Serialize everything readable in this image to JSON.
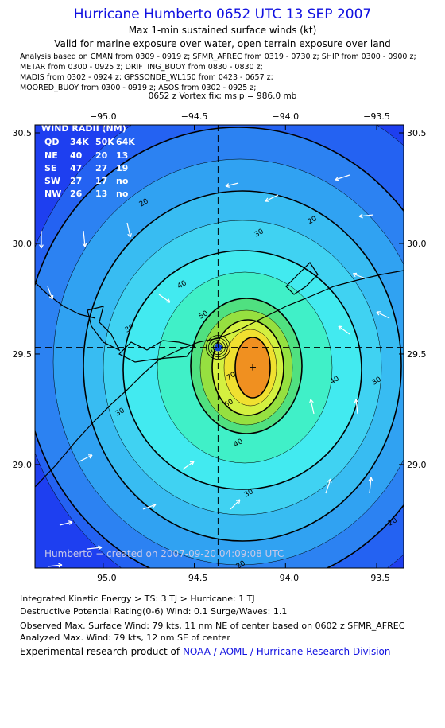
{
  "header": {
    "title": "Hurricane Humberto 0652 UTC 13 SEP 2007",
    "subtitle": "Max 1-min sustained surface winds (kt)",
    "valid": "Valid for marine exposure over water, open terrain exposure over land",
    "sources": [
      "Analysis based on  CMAN from 0309 - 0919 z;  SFMR_AFREC from 0319 - 0730 z;  SHIP from 0300 - 0900 z;",
      "METAR from 0300 - 0925 z;  DRIFTING_BUOY from 0830 - 0830 z;",
      "MADIS from 0302 - 0924 z;  GPSSONDE_WL150 from 0423 - 0657 z;",
      "MOORED_BUOY from 0300 - 0919 z;  ASOS from 0302 - 0925 z;"
    ],
    "vortex_fix": "0652 z Vortex fix; mslp = 986.0 mb"
  },
  "map": {
    "type": "contour",
    "xlim": [
      -95.374,
      -93.352
    ],
    "ylim": [
      28.532,
      30.536
    ],
    "xticks": [
      {
        "value": -95,
        "label": "−95.0"
      },
      {
        "value": -94.5,
        "label": "−94.5"
      },
      {
        "value": -94,
        "label": "−94.0"
      },
      {
        "value": -93.5,
        "label": "−93.5"
      }
    ],
    "yticks": [
      {
        "value": 29,
        "label": "29.0"
      },
      29.5,
      {
        "value": 30,
        "label": "30.0"
      },
      30.5
    ],
    "contour_levels": [
      20,
      30,
      40,
      50,
      60,
      70
    ],
    "contour_labels": [
      20,
      30,
      20,
      40,
      30,
      50,
      30,
      70,
      60,
      40,
      30,
      40,
      30,
      20,
      20
    ],
    "vortex": {
      "x": -94.37,
      "y": 29.53
    },
    "max_wind": {
      "x": -94.18,
      "y": 29.44
    },
    "credit": "Humberto − created on 2007-09-20 04:09:08 UTC",
    "wind_radii": {
      "title": "WIND RADII (NM)",
      "columns": [
        "QD",
        "34K",
        "50K",
        "64K"
      ],
      "rows": [
        [
          "NE",
          40,
          20,
          13
        ],
        [
          "SE",
          47,
          27,
          19
        ],
        [
          "SW",
          27,
          17,
          "no"
        ],
        [
          "NW",
          26,
          13,
          "no"
        ]
      ]
    }
  },
  "footer": {
    "ike": "Integrated Kinetic Energy > TS: 3 TJ   > Hurricane: 1 TJ",
    "dpr": "Destructive Potential Rating(0-6)   Wind: 0.1 Surge/Waves: 1.1",
    "observed": "Observed Max. Surface Wind: 79 kts, 11 nm NE of center based on 0602 z SFMR_AFREC",
    "analyzed": "Analyzed Max. Wind: 79 kts, 12 nm SE of center",
    "product": "Experimental research product of",
    "org": "NOAA / AOML / Hurricane Research Division"
  }
}
